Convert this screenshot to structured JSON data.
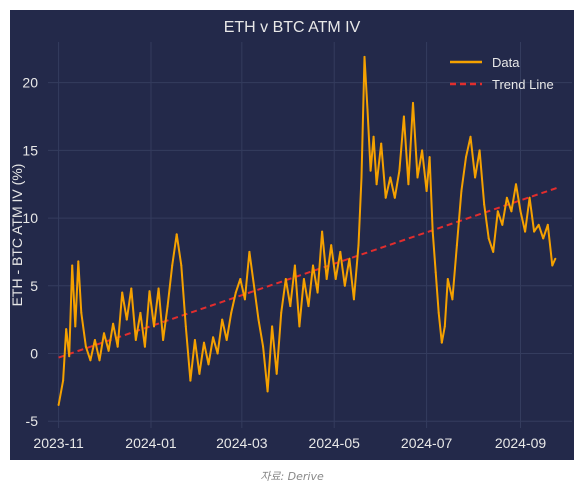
{
  "caption": "자료: Derive",
  "chart_data": {
    "type": "line",
    "title": "ETH v BTC ATM IV",
    "xlabel": "",
    "ylabel": "ETH - BTC ATM IV (%)",
    "ylim": [
      -5.5,
      23.0
    ],
    "yticks": [
      -5,
      0,
      5,
      10,
      15,
      20
    ],
    "xticks": [
      "2023-11",
      "2024-01",
      "2024-03",
      "2024-05",
      "2024-07",
      "2024-09"
    ],
    "xlim": [
      "2023-10-25",
      "2024-10-05"
    ],
    "grid": true,
    "legend": "top-right",
    "colors": {
      "background": "#23294a",
      "data": "#f5a100",
      "trend": "#e22d2d",
      "grid": "#343c5e",
      "text": "#e8e8e8"
    },
    "series": [
      {
        "name": "Data",
        "style": "solid",
        "points": [
          [
            "2023-11-01",
            -3.8
          ],
          [
            "2023-11-04",
            -2.0
          ],
          [
            "2023-11-06",
            1.8
          ],
          [
            "2023-11-08",
            -0.2
          ],
          [
            "2023-11-10",
            6.5
          ],
          [
            "2023-11-12",
            2.0
          ],
          [
            "2023-11-14",
            6.8
          ],
          [
            "2023-11-16",
            3.0
          ],
          [
            "2023-11-19",
            0.5
          ],
          [
            "2023-11-22",
            -0.5
          ],
          [
            "2023-11-25",
            1.0
          ],
          [
            "2023-11-28",
            -0.5
          ],
          [
            "2023-12-01",
            1.5
          ],
          [
            "2023-12-04",
            0.2
          ],
          [
            "2023-12-07",
            2.2
          ],
          [
            "2023-12-10",
            0.5
          ],
          [
            "2023-12-13",
            4.5
          ],
          [
            "2023-12-16",
            2.5
          ],
          [
            "2023-12-19",
            4.8
          ],
          [
            "2023-12-22",
            1.0
          ],
          [
            "2023-12-25",
            3.0
          ],
          [
            "2023-12-28",
            0.5
          ],
          [
            "2023-12-31",
            4.6
          ],
          [
            "2024-01-03",
            2.0
          ],
          [
            "2024-01-06",
            4.8
          ],
          [
            "2024-01-09",
            1.0
          ],
          [
            "2024-01-12",
            3.5
          ],
          [
            "2024-01-15",
            6.5
          ],
          [
            "2024-01-18",
            8.8
          ],
          [
            "2024-01-21",
            6.5
          ],
          [
            "2024-01-24",
            2.0
          ],
          [
            "2024-01-27",
            -2.0
          ],
          [
            "2024-01-30",
            1.0
          ],
          [
            "2024-02-02",
            -1.5
          ],
          [
            "2024-02-05",
            0.8
          ],
          [
            "2024-02-08",
            -0.8
          ],
          [
            "2024-02-11",
            1.2
          ],
          [
            "2024-02-14",
            0.0
          ],
          [
            "2024-02-17",
            2.5
          ],
          [
            "2024-02-20",
            1.0
          ],
          [
            "2024-02-23",
            3.0
          ],
          [
            "2024-02-26",
            4.5
          ],
          [
            "2024-02-29",
            5.5
          ],
          [
            "2024-03-03",
            4.0
          ],
          [
            "2024-03-06",
            7.5
          ],
          [
            "2024-03-09",
            5.0
          ],
          [
            "2024-03-12",
            2.5
          ],
          [
            "2024-03-15",
            0.5
          ],
          [
            "2024-03-18",
            -2.8
          ],
          [
            "2024-03-21",
            2.0
          ],
          [
            "2024-03-24",
            -1.5
          ],
          [
            "2024-03-27",
            3.0
          ],
          [
            "2024-03-30",
            5.5
          ],
          [
            "2024-04-02",
            3.5
          ],
          [
            "2024-04-05",
            6.5
          ],
          [
            "2024-04-08",
            2.0
          ],
          [
            "2024-04-11",
            5.5
          ],
          [
            "2024-04-14",
            3.5
          ],
          [
            "2024-04-17",
            6.5
          ],
          [
            "2024-04-20",
            4.5
          ],
          [
            "2024-04-23",
            9.0
          ],
          [
            "2024-04-26",
            5.5
          ],
          [
            "2024-04-29",
            8.0
          ],
          [
            "2024-05-02",
            5.5
          ],
          [
            "2024-05-05",
            7.5
          ],
          [
            "2024-05-08",
            5.0
          ],
          [
            "2024-05-11",
            7.0
          ],
          [
            "2024-05-14",
            4.0
          ],
          [
            "2024-05-17",
            8.0
          ],
          [
            "2024-05-19",
            13.0
          ],
          [
            "2024-05-21",
            21.9
          ],
          [
            "2024-05-23",
            18.0
          ],
          [
            "2024-05-25",
            13.5
          ],
          [
            "2024-05-27",
            16.0
          ],
          [
            "2024-05-29",
            12.5
          ],
          [
            "2024-06-01",
            15.5
          ],
          [
            "2024-06-04",
            11.5
          ],
          [
            "2024-06-07",
            13.0
          ],
          [
            "2024-06-10",
            11.5
          ],
          [
            "2024-06-13",
            13.5
          ],
          [
            "2024-06-16",
            17.5
          ],
          [
            "2024-06-19",
            12.5
          ],
          [
            "2024-06-22",
            18.5
          ],
          [
            "2024-06-25",
            13.0
          ],
          [
            "2024-06-28",
            15.0
          ],
          [
            "2024-07-01",
            12.0
          ],
          [
            "2024-07-03",
            14.5
          ],
          [
            "2024-07-05",
            9.0
          ],
          [
            "2024-07-07",
            6.0
          ],
          [
            "2024-07-09",
            3.0
          ],
          [
            "2024-07-11",
            0.8
          ],
          [
            "2024-07-13",
            2.0
          ],
          [
            "2024-07-15",
            5.5
          ],
          [
            "2024-07-18",
            4.0
          ],
          [
            "2024-07-21",
            8.0
          ],
          [
            "2024-07-24",
            12.0
          ],
          [
            "2024-07-27",
            14.5
          ],
          [
            "2024-07-30",
            16.0
          ],
          [
            "2024-08-02",
            13.0
          ],
          [
            "2024-08-05",
            15.0
          ],
          [
            "2024-08-08",
            11.0
          ],
          [
            "2024-08-11",
            8.5
          ],
          [
            "2024-08-14",
            7.5
          ],
          [
            "2024-08-17",
            10.5
          ],
          [
            "2024-08-20",
            9.5
          ],
          [
            "2024-08-23",
            11.5
          ],
          [
            "2024-08-26",
            10.5
          ],
          [
            "2024-08-29",
            12.5
          ],
          [
            "2024-09-01",
            10.5
          ],
          [
            "2024-09-04",
            9.0
          ],
          [
            "2024-09-07",
            11.5
          ],
          [
            "2024-09-10",
            9.0
          ],
          [
            "2024-09-13",
            9.5
          ],
          [
            "2024-09-16",
            8.5
          ],
          [
            "2024-09-19",
            9.5
          ],
          [
            "2024-09-22",
            6.5
          ],
          [
            "2024-09-24",
            7.0
          ]
        ]
      },
      {
        "name": "Trend Line",
        "style": "dashed",
        "points": [
          [
            "2023-11-01",
            -0.3
          ],
          [
            "2024-09-27",
            12.3
          ]
        ]
      }
    ]
  }
}
